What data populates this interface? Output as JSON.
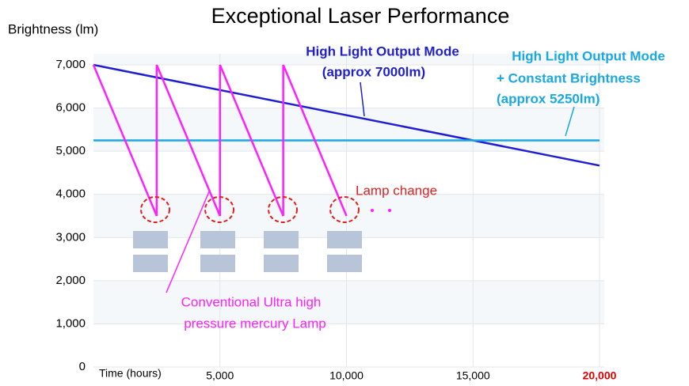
{
  "chart_data": {
    "type": "line",
    "title": "Exceptional Laser Performance",
    "ylabel": "Brightness (lm)",
    "xlabel": "Time (hours)",
    "xlim": [
      0,
      20000
    ],
    "ylim": [
      0,
      7000
    ],
    "xticks": [
      {
        "value": 5000,
        "label": "5,000"
      },
      {
        "value": 10000,
        "label": "10,000"
      },
      {
        "value": 15000,
        "label": "15,000"
      },
      {
        "value": 20000,
        "label": "20,000"
      }
    ],
    "xtick_colors": [
      "#000000",
      "#000000",
      "#000000",
      "#e00000"
    ],
    "yticks": [
      0,
      {
        "value": 1000,
        "label": "1,000"
      },
      {
        "value": 2000,
        "label": "2,000"
      },
      {
        "value": 3000,
        "label": "3,000"
      },
      {
        "value": 4000,
        "label": "4,000"
      },
      {
        "value": 5000,
        "label": "5,000"
      },
      {
        "value": 6000,
        "label": "6,000"
      },
      {
        "value": 7000,
        "label": "7,000"
      }
    ],
    "grid": true,
    "series": [
      {
        "color": "#1f1fd0",
        "x": [
          0,
          20000
        ],
        "values": [
          7000,
          4667
        ]
      },
      {
        "color": "#1aa8e0",
        "x": [
          0,
          20000
        ],
        "values": [
          5250,
          5250
        ]
      },
      {
        "color": "#ff20ff",
        "x": [
          0,
          2500,
          2500,
          5000,
          5000,
          7500,
          7500,
          10000
        ],
        "values": [
          7000,
          3500,
          7000,
          3500,
          7000,
          3500,
          7000,
          3500
        ]
      }
    ],
    "annotations": [
      "High Light Output Mode",
      "(approx 7000lm)",
      "High Light Output Mode",
      "+ Constant Brightness",
      "(approx 5250lm)",
      "Lamp change",
      "Conventional Ultra high",
      "pressure mercury Lamp"
    ]
  }
}
